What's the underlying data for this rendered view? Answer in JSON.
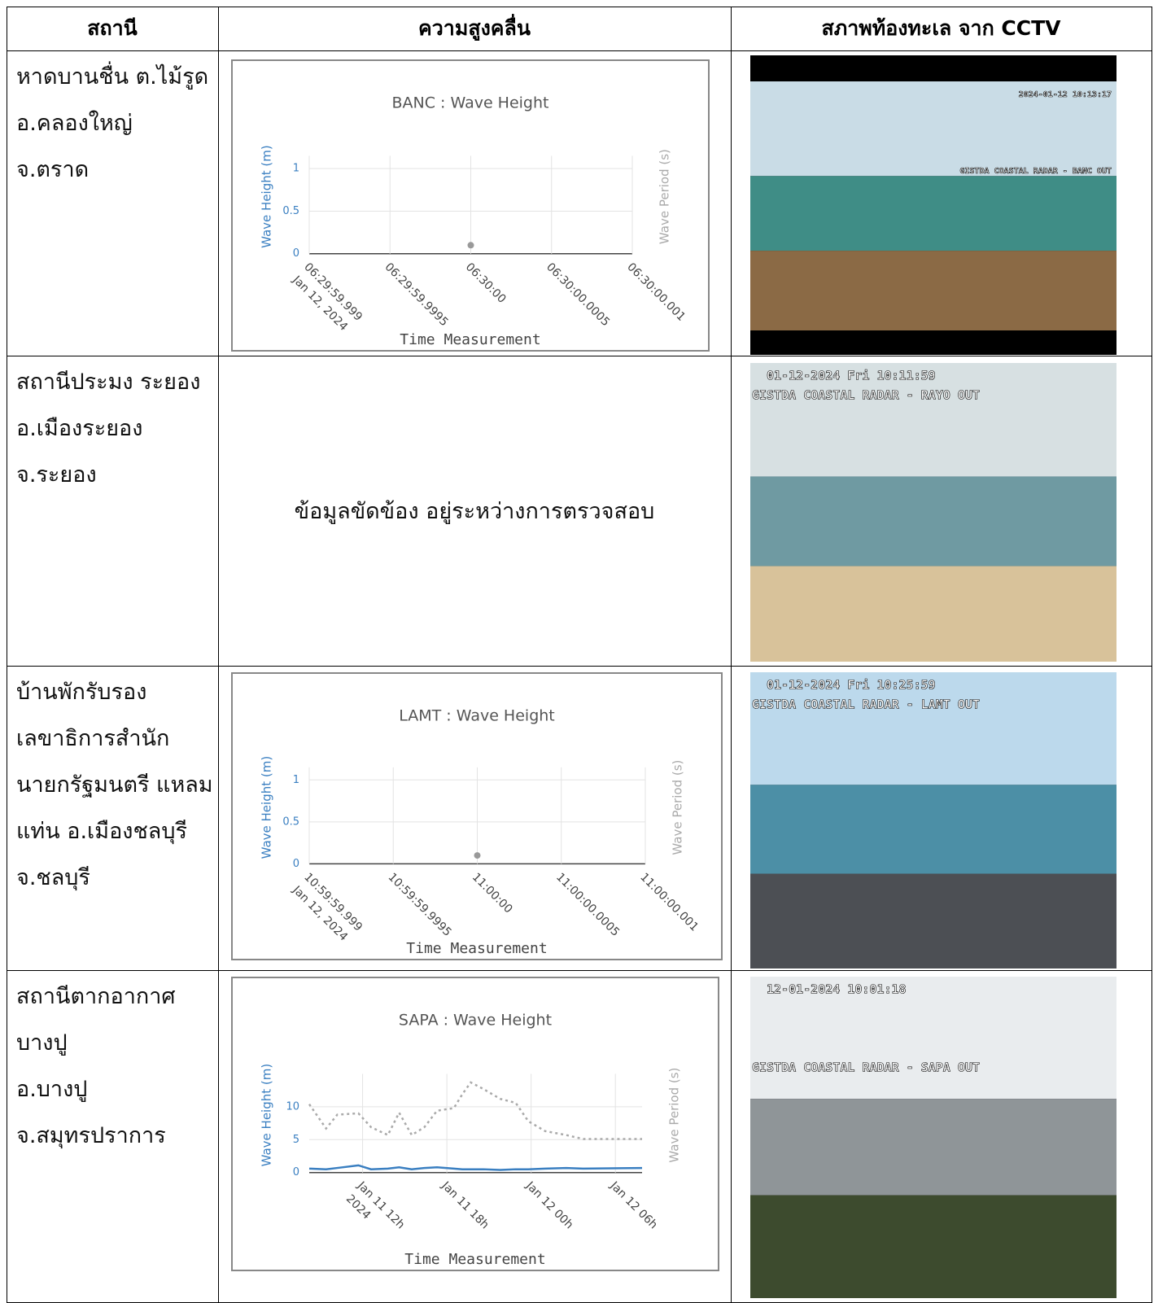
{
  "table": {
    "header": [
      "สถานี",
      "ความสูงคลื่น",
      "สภาพท้องทะเล จาก CCTV"
    ],
    "rows": [
      {
        "station": [
          "หาดบานชื่น ต.ไม้รูด",
          "อ.คลองใหญ่",
          "จ.ตราด"
        ],
        "chart": {
          "type": "line",
          "title": "BANC : Wave Height",
          "ylabel": "Wave Height (m)",
          "y2label": "Wave Period (s)",
          "xlabel": "Time Measurement",
          "categories": [
            "06:29:59.999",
            "06:29:59.9995",
            "06:30:00",
            "06:30:00.0005",
            "06:30:00.001"
          ],
          "x_sublabel": "Jan 12, 2024",
          "ylim": [
            0,
            1.15
          ],
          "yticks": [
            0,
            0.5,
            1
          ],
          "grid": true,
          "series": [
            {
              "color": "#999999",
              "mode": "markers",
              "values": [
                null,
                null,
                0.1,
                null,
                null
              ]
            }
          ]
        },
        "cctv": {
          "timestamp": "2024-01-12 10:13:17",
          "caption": "GISTDA COASTAL RADAR - BANC OUT"
        }
      },
      {
        "station": [
          "สถานีประมง ระยอง",
          "อ.เมืองระยอง",
          "จ.ระยอง"
        ],
        "status": "ข้อมูลขัดข้อง อยู่ระหว่างการตรวจสอบ",
        "cctv": {
          "timestamp": "01-12-2024 Fri 10:11:59",
          "caption": "GISTDA COASTAL RADAR - RAYO OUT"
        }
      },
      {
        "station": [
          "บ้านพักรับรอง",
          "เลขาธิการสำนัก",
          "นายกรัฐมนตรี แหลม",
          "แท่น อ.เมืองชลบุรี",
          "จ.ชลบุรี"
        ],
        "chart": {
          "type": "line",
          "title": "LAMT : Wave Height",
          "ylabel": "Wave Height (m)",
          "y2label": "Wave Period (s)",
          "xlabel": "Time Measurement",
          "categories": [
            "10:59:59.999",
            "10:59:59.9995",
            "11:00:00",
            "11:00:00.0005",
            "11:00:00.001"
          ],
          "x_sublabel": "Jan 12, 2024",
          "ylim": [
            0,
            1.15
          ],
          "yticks": [
            0,
            0.5,
            1
          ],
          "grid": true,
          "series": [
            {
              "color": "#999999",
              "mode": "markers",
              "values": [
                null,
                null,
                0.1,
                null,
                null
              ]
            }
          ]
        },
        "cctv": {
          "timestamp": "01-12-2024 Fri 10:25:59",
          "caption": "GISTDA COASTAL RADAR - LAMT OUT"
        }
      },
      {
        "station": [
          "สถานีตากอากาศ",
          "บางปู",
          "อ.บางปู",
          "จ.สมุทรปราการ"
        ],
        "chart": {
          "type": "line",
          "title": "SAPA : Wave Height",
          "ylabel": "Wave Height (m)",
          "y2label": "Wave Period (s)",
          "xlabel": "Time Measurement",
          "x": [
            8.2,
            9.4,
            10.2,
            11.7,
            12.6,
            13.8,
            14.6,
            15.5,
            16.4,
            17.3,
            18.5,
            19.1,
            19.7,
            20.6,
            21.8,
            22.9,
            23.8,
            25,
            26.5,
            27.7,
            31.9
          ],
          "xlim": [
            8.2,
            31.9
          ],
          "xticks": [
            {
              "value": 12,
              "label": "Jan 11 12h"
            },
            {
              "value": 18,
              "label": "Jan 11 18h"
            },
            {
              "value": 24,
              "label": "Jan 12 00h"
            },
            {
              "value": 30,
              "label": "Jan 12 06h"
            }
          ],
          "x_sublabel": "2024",
          "ylim": [
            0,
            15
          ],
          "yticks": [
            0,
            5,
            10
          ],
          "grid": true,
          "series": [
            {
              "color": "#3a7fc1",
              "mode": "lines",
              "values": [
                0.6,
                0.5,
                0.7,
                1.1,
                0.5,
                0.6,
                0.8,
                0.5,
                0.7,
                0.8,
                0.6,
                0.5,
                0.5,
                0.5,
                0.4,
                0.5,
                0.5,
                0.6,
                0.7,
                0.6,
                0.7
              ]
            },
            {
              "color": "#aaaaaa",
              "mode": "lines",
              "dash": true,
              "values": [
                10.4,
                6.7,
                8.8,
                9,
                6.9,
                5.7,
                9.1,
                5.7,
                6.9,
                9.4,
                9.8,
                11.9,
                13.7,
                12.7,
                11.2,
                10.6,
                7.8,
                6.3,
                5.7,
                5.1,
                5.1
              ]
            }
          ]
        },
        "cctv": {
          "timestamp": "12-01-2024 10:01:18",
          "caption": "GISTDA COASTAL RADAR - SAPA OUT"
        }
      }
    ]
  }
}
